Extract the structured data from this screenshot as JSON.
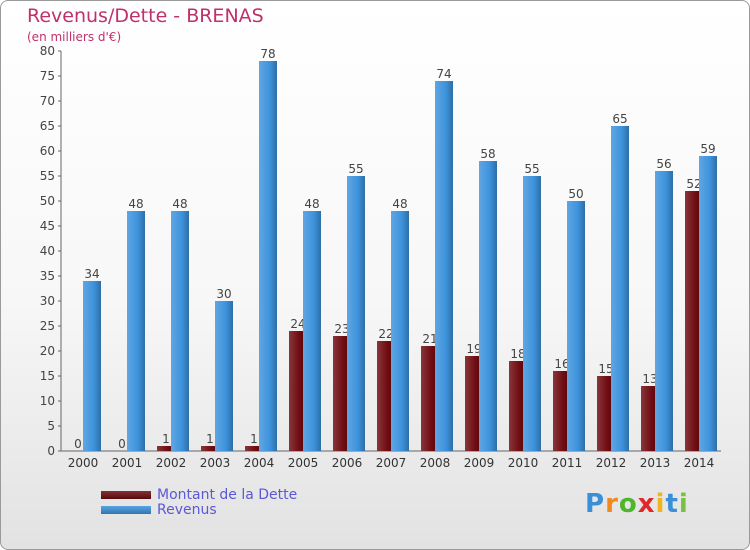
{
  "chart_data": {
    "type": "bar",
    "title": "Revenus/Dette - BRENAS",
    "subtitle": "(en milliers d'€)",
    "categories": [
      "2000",
      "2001",
      "2002",
      "2003",
      "2004",
      "2005",
      "2006",
      "2007",
      "2008",
      "2009",
      "2010",
      "2011",
      "2012",
      "2013",
      "2014"
    ],
    "series": [
      {
        "name": "Montant de la Dette",
        "color": "#6e0b10",
        "values": [
          0,
          0,
          1,
          1,
          1,
          24,
          23,
          22,
          21,
          19,
          18,
          16,
          15,
          13,
          52
        ]
      },
      {
        "name": "Revenus",
        "color": "#3d93dc",
        "values": [
          34,
          48,
          48,
          30,
          78,
          48,
          55,
          48,
          74,
          58,
          55,
          50,
          65,
          56,
          59
        ]
      }
    ],
    "ylim": [
      0,
      80
    ],
    "yticks": [
      0,
      5,
      10,
      15,
      20,
      25,
      30,
      35,
      40,
      45,
      50,
      55,
      60,
      65,
      70,
      75,
      80
    ],
    "grid": false,
    "legend_position": "bottom-left"
  },
  "brand": {
    "letters": [
      "P",
      "r",
      "o",
      "x",
      "i",
      "t",
      "i"
    ],
    "colors": [
      "#3a8fd8",
      "#f08a1c",
      "#4fb52a",
      "#e0282a",
      "#f0b41c",
      "#3a8fd8",
      "#7ac142"
    ]
  }
}
